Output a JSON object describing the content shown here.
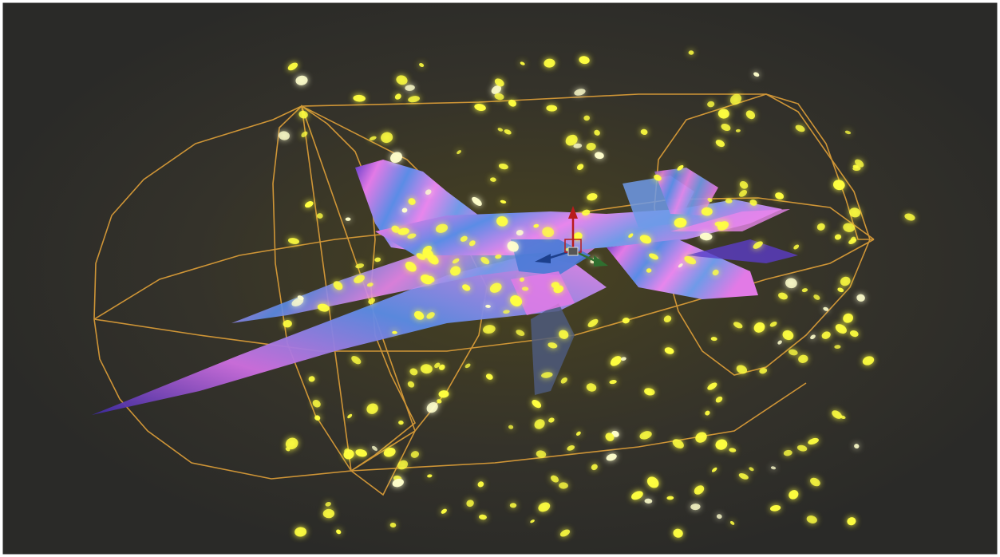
{
  "viewport": {
    "background_color": "#2a2a28",
    "glow_color": "#4a4420",
    "frame_color": "#ffffff"
  },
  "scene": {
    "selected_object": {
      "icon": "jet-aircraft-icon",
      "colors": {
        "primary": "#e27ae6",
        "secondary": "#5b8ce6",
        "dark": "#3c2aa0"
      }
    },
    "bounds_wireframe": {
      "icon": "cylinder-wireframe-icon",
      "color": "#e0a038"
    },
    "particles": {
      "icon": "glow-particle-icon",
      "color": "#ffff40",
      "core_color": "#ffffcc"
    }
  },
  "gizmo": {
    "icon": "transform-gizmo-icon",
    "axes": [
      {
        "name": "z",
        "color": "#b81c1c",
        "icon": "arrow-up-icon"
      },
      {
        "name": "x",
        "color": "#2f6f2f",
        "icon": "arrow-right-icon"
      },
      {
        "name": "y",
        "color": "#1c3f8c",
        "icon": "arrow-left-icon"
      }
    ],
    "center_icon": "move-handle-icon"
  }
}
